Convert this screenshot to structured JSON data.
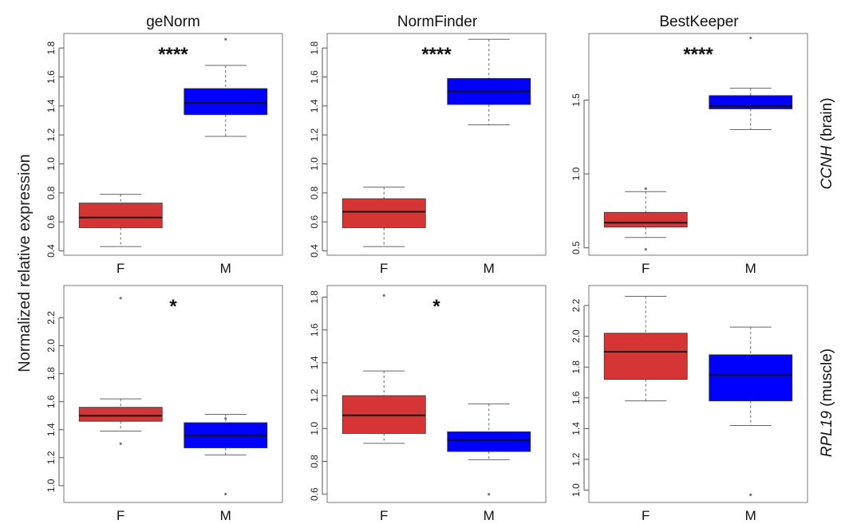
{
  "figure": {
    "y_axis_label": "Normalized relative expression",
    "column_titles": [
      "geNorm",
      "NormFinder",
      "BestKeeper"
    ],
    "row_labels": [
      {
        "italic": "CCNH",
        "normal": " (brain)"
      },
      {
        "italic": "RPL19",
        "normal": " (muscle)"
      }
    ]
  },
  "colors": {
    "F": "#d63535",
    "M": "#0000ff",
    "median": "#111111",
    "whisker": "#666666"
  },
  "chart_data": [
    {
      "type": "box",
      "method": "geNorm",
      "gene": "CCNH (brain)",
      "categories": [
        "F",
        "M"
      ],
      "significance": "****",
      "ylim": [
        0.37,
        1.9
      ],
      "yticks": [
        0.4,
        0.6,
        0.8,
        1.0,
        1.2,
        1.4,
        1.6,
        1.8
      ],
      "ytick_labels": [
        "0.4",
        "0.6",
        "0.8",
        "1.0",
        "1.2",
        "1.4",
        "1.6",
        "1.8"
      ],
      "boxes": [
        {
          "category": "F",
          "min": 0.43,
          "q1": 0.56,
          "median": 0.63,
          "q3": 0.73,
          "max": 0.79,
          "outliers": []
        },
        {
          "category": "M",
          "min": 1.19,
          "q1": 1.34,
          "median": 1.42,
          "q3": 1.52,
          "max": 1.68,
          "outliers": [
            1.86
          ]
        }
      ]
    },
    {
      "type": "box",
      "method": "NormFinder",
      "gene": "CCNH (brain)",
      "categories": [
        "F",
        "M"
      ],
      "significance": "****",
      "ylim": [
        0.37,
        1.9
      ],
      "yticks": [
        0.4,
        0.6,
        0.8,
        1.0,
        1.2,
        1.4,
        1.6,
        1.8
      ],
      "ytick_labels": [
        "0.4",
        "0.6",
        "0.8",
        "1.0",
        "1.2",
        "1.4",
        "1.6",
        "1.8"
      ],
      "boxes": [
        {
          "category": "F",
          "min": 0.43,
          "q1": 0.56,
          "median": 0.67,
          "q3": 0.76,
          "max": 0.84,
          "outliers": []
        },
        {
          "category": "M",
          "min": 1.27,
          "q1": 1.41,
          "median": 1.5,
          "q3": 1.59,
          "max": 1.86,
          "outliers": []
        }
      ]
    },
    {
      "type": "box",
      "method": "BestKeeper",
      "gene": "CCNH (brain)",
      "categories": [
        "F",
        "M"
      ],
      "significance": "****",
      "ylim": [
        0.45,
        1.95
      ],
      "yticks": [
        0.5,
        1.0,
        1.5
      ],
      "ytick_labels": [
        "0.5",
        "1.0",
        "1.5"
      ],
      "boxes": [
        {
          "category": "F",
          "min": 0.57,
          "q1": 0.64,
          "median": 0.67,
          "q3": 0.74,
          "max": 0.88,
          "outliers": [
            0.9,
            0.49
          ]
        },
        {
          "category": "M",
          "min": 1.3,
          "q1": 1.44,
          "median": 1.46,
          "q3": 1.53,
          "max": 1.58,
          "outliers": [
            1.92
          ]
        }
      ]
    },
    {
      "type": "box",
      "method": "geNorm",
      "gene": "RPL19 (muscle)",
      "categories": [
        "F",
        "M"
      ],
      "significance": "*",
      "ylim": [
        0.88,
        2.43
      ],
      "yticks": [
        1.0,
        1.2,
        1.4,
        1.6,
        1.8,
        2.0,
        2.2
      ],
      "ytick_labels": [
        "1.0",
        "1.2",
        "1.4",
        "1.6",
        "1.8",
        "2.0",
        "2.2"
      ],
      "boxes": [
        {
          "category": "F",
          "min": 1.39,
          "q1": 1.46,
          "median": 1.5,
          "q3": 1.56,
          "max": 1.62,
          "outliers": [
            2.34,
            1.3
          ]
        },
        {
          "category": "M",
          "min": 1.22,
          "q1": 1.27,
          "median": 1.36,
          "q3": 1.45,
          "max": 1.51,
          "outliers": [
            1.48,
            0.94
          ]
        }
      ]
    },
    {
      "type": "box",
      "method": "NormFinder",
      "gene": "RPL19 (muscle)",
      "categories": [
        "F",
        "M"
      ],
      "significance": "*",
      "ylim": [
        0.55,
        1.87
      ],
      "yticks": [
        0.6,
        0.8,
        1.0,
        1.2,
        1.4,
        1.6,
        1.8
      ],
      "ytick_labels": [
        "0.6",
        "0.8",
        "1.0",
        "1.2",
        "1.4",
        "1.6",
        "1.8"
      ],
      "boxes": [
        {
          "category": "F",
          "min": 0.91,
          "q1": 0.97,
          "median": 1.08,
          "q3": 1.2,
          "max": 1.35,
          "outliers": [
            1.81
          ]
        },
        {
          "category": "M",
          "min": 0.81,
          "q1": 0.86,
          "median": 0.93,
          "q3": 0.98,
          "max": 1.15,
          "outliers": [
            0.6
          ]
        }
      ]
    },
    {
      "type": "box",
      "method": "BestKeeper",
      "gene": "RPL19 (muscle)",
      "categories": [
        "F",
        "M"
      ],
      "significance": "",
      "ylim": [
        0.92,
        2.33
      ],
      "yticks": [
        1.0,
        1.2,
        1.4,
        1.6,
        1.8,
        2.0,
        2.2
      ],
      "ytick_labels": [
        "1.0",
        "1.2",
        "1.4",
        "1.6",
        "1.8",
        "2.0",
        "2.2"
      ],
      "boxes": [
        {
          "category": "F",
          "min": 1.58,
          "q1": 1.72,
          "median": 1.9,
          "q3": 2.02,
          "max": 2.26,
          "outliers": []
        },
        {
          "category": "M",
          "min": 1.42,
          "q1": 1.58,
          "median": 1.75,
          "q3": 1.88,
          "max": 2.06,
          "outliers": [
            0.97
          ]
        }
      ]
    }
  ]
}
